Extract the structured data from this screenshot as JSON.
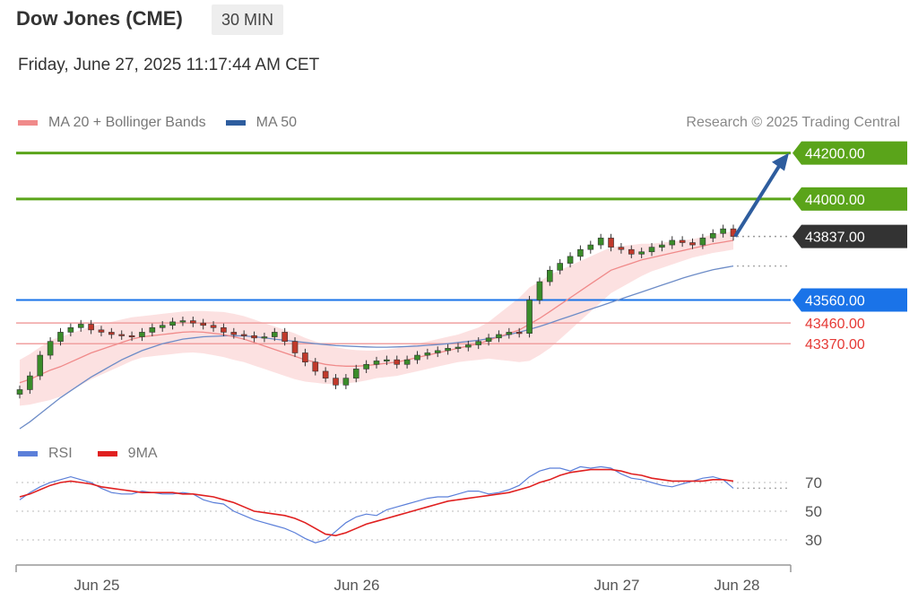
{
  "header": {
    "title": "Dow Jones (CME)",
    "timeframe": "30 MIN",
    "datetime": "Friday, June 27, 2025 11:17:44 AM CET"
  },
  "legend": {
    "ma20_label": "MA 20 + Bollinger Bands",
    "ma20_color": "#f08a8a",
    "ma50_label": "MA 50",
    "ma50_color": "#2e5d9e",
    "copyright": "Research © 2025 Trading Central"
  },
  "rsi_legend": {
    "rsi_label": "RSI",
    "rsi_color": "#5b7fd9",
    "ma9_label": "9MA",
    "ma9_color": "#e02020"
  },
  "chart_data": [
    {
      "type": "candlestick",
      "title": "Dow Jones (CME)",
      "x_ticks": [
        "Jun 25",
        "Jun 26",
        "Jun 27",
        "Jun 28"
      ],
      "ylim": [
        43000,
        44300
      ],
      "levels": [
        {
          "value": 44200,
          "label": "44200.00",
          "color": "#5aa41a",
          "kind": "resistance"
        },
        {
          "value": 44000,
          "label": "44000.00",
          "color": "#5aa41a",
          "kind": "resistance"
        },
        {
          "value": 43837,
          "label": "43837.00",
          "color": "#333333",
          "kind": "last"
        },
        {
          "value": 43560,
          "label": "43560.00",
          "color": "#1a73e8",
          "kind": "pivot"
        },
        {
          "value": 43460,
          "label": "43460.00",
          "color": "#e53935",
          "kind": "support"
        },
        {
          "value": 43370,
          "label": "43370.00",
          "color": "#e53935",
          "kind": "support"
        }
      ],
      "close": [
        43170,
        43230,
        43320,
        43380,
        43420,
        43440,
        43455,
        43430,
        43420,
        43410,
        43405,
        43400,
        43420,
        43440,
        43450,
        43465,
        43470,
        43460,
        43450,
        43440,
        43420,
        43410,
        43405,
        43395,
        43400,
        43420,
        43380,
        43330,
        43290,
        43250,
        43220,
        43190,
        43220,
        43260,
        43280,
        43295,
        43300,
        43280,
        43300,
        43320,
        43330,
        43340,
        43350,
        43355,
        43365,
        43380,
        43395,
        43410,
        43420,
        43415,
        43560,
        43640,
        43690,
        43720,
        43750,
        43780,
        43800,
        43830,
        43790,
        43780,
        43760,
        43770,
        43790,
        43800,
        43820,
        43810,
        43800,
        43830,
        43850,
        43870,
        43837
      ],
      "ma20": [
        43200,
        43215,
        43235,
        43255,
        43270,
        43290,
        43310,
        43330,
        43345,
        43360,
        43375,
        43390,
        43400,
        43405,
        43410,
        43415,
        43420,
        43422,
        43420,
        43415,
        43410,
        43400,
        43390,
        43375,
        43360,
        43345,
        43330,
        43315,
        43300,
        43290,
        43280,
        43275,
        43272,
        43272,
        43275,
        43280,
        43285,
        43290,
        43300,
        43310,
        43320,
        43330,
        43340,
        43350,
        43360,
        43370,
        43385,
        43400,
        43415,
        43430,
        43455,
        43480,
        43510,
        43540,
        43570,
        43600,
        43630,
        43660,
        43690,
        43705,
        43720,
        43735,
        43745,
        43755,
        43765,
        43775,
        43785,
        43795,
        43805,
        43812,
        43820
      ],
      "ma50": [
        43000,
        43030,
        43065,
        43100,
        43135,
        43165,
        43195,
        43225,
        43250,
        43275,
        43300,
        43320,
        43340,
        43355,
        43370,
        43380,
        43390,
        43395,
        43400,
        43402,
        43404,
        43405,
        43404,
        43400,
        43396,
        43390,
        43385,
        43380,
        43375,
        43370,
        43366,
        43362,
        43360,
        43358,
        43356,
        43355,
        43355,
        43356,
        43358,
        43360,
        43363,
        43366,
        43370,
        43375,
        43380,
        43385,
        43392,
        43400,
        43410,
        43420,
        43432,
        43445,
        43460,
        43475,
        43490,
        43505,
        43520,
        43535,
        43550,
        43565,
        43580,
        43595,
        43610,
        43625,
        43640,
        43655,
        43668,
        43680,
        43692,
        43700,
        43708
      ],
      "bb_width": [
        100,
        110,
        120,
        130,
        130,
        125,
        120,
        115,
        110,
        105,
        100,
        95,
        90,
        90,
        90,
        90,
        90,
        90,
        92,
        95,
        98,
        100,
        100,
        100,
        100,
        100,
        100,
        100,
        95,
        90,
        85,
        80,
        75,
        70,
        65,
        60,
        60,
        60,
        60,
        60,
        60,
        60,
        60,
        60,
        65,
        70,
        80,
        100,
        120,
        140,
        160,
        160,
        160,
        150,
        140,
        130,
        120,
        110,
        100,
        90,
        80,
        70,
        60,
        55,
        50,
        45,
        40,
        40,
        40,
        40,
        40
      ]
    },
    {
      "type": "line",
      "title": "RSI",
      "ylim": [
        20,
        80
      ],
      "y_ticks": [
        "70",
        "50",
        "30"
      ],
      "series": [
        {
          "name": "RSI",
          "color": "#5b7fd9",
          "values": [
            58,
            63,
            67,
            70,
            72,
            74,
            72,
            70,
            66,
            63,
            62,
            62,
            64,
            63,
            62,
            62,
            63,
            62,
            58,
            56,
            55,
            50,
            47,
            44,
            42,
            40,
            38,
            35,
            31,
            28,
            30,
            36,
            42,
            46,
            48,
            47,
            51,
            53,
            55,
            57,
            59,
            60,
            60,
            62,
            64,
            64,
            62,
            63,
            65,
            68,
            74,
            78,
            80,
            80,
            78,
            81,
            80,
            81,
            80,
            76,
            73,
            72,
            70,
            68,
            67,
            69,
            71,
            73,
            74,
            72,
            66
          ]
        },
        {
          "name": "9MA",
          "color": "#e02020",
          "values": [
            60,
            62,
            65,
            68,
            70,
            71,
            70,
            69,
            67,
            66,
            65,
            64,
            63,
            63,
            63,
            63,
            62,
            62,
            61,
            60,
            58,
            56,
            53,
            50,
            49,
            48,
            47,
            45,
            42,
            38,
            34,
            33,
            35,
            38,
            41,
            43,
            45,
            47,
            49,
            51,
            53,
            55,
            57,
            58,
            59,
            60,
            61,
            62,
            63,
            65,
            67,
            70,
            72,
            75,
            77,
            78,
            79,
            79,
            79,
            78,
            76,
            75,
            73,
            72,
            71,
            71,
            71,
            71,
            72,
            72,
            71
          ]
        }
      ]
    }
  ]
}
